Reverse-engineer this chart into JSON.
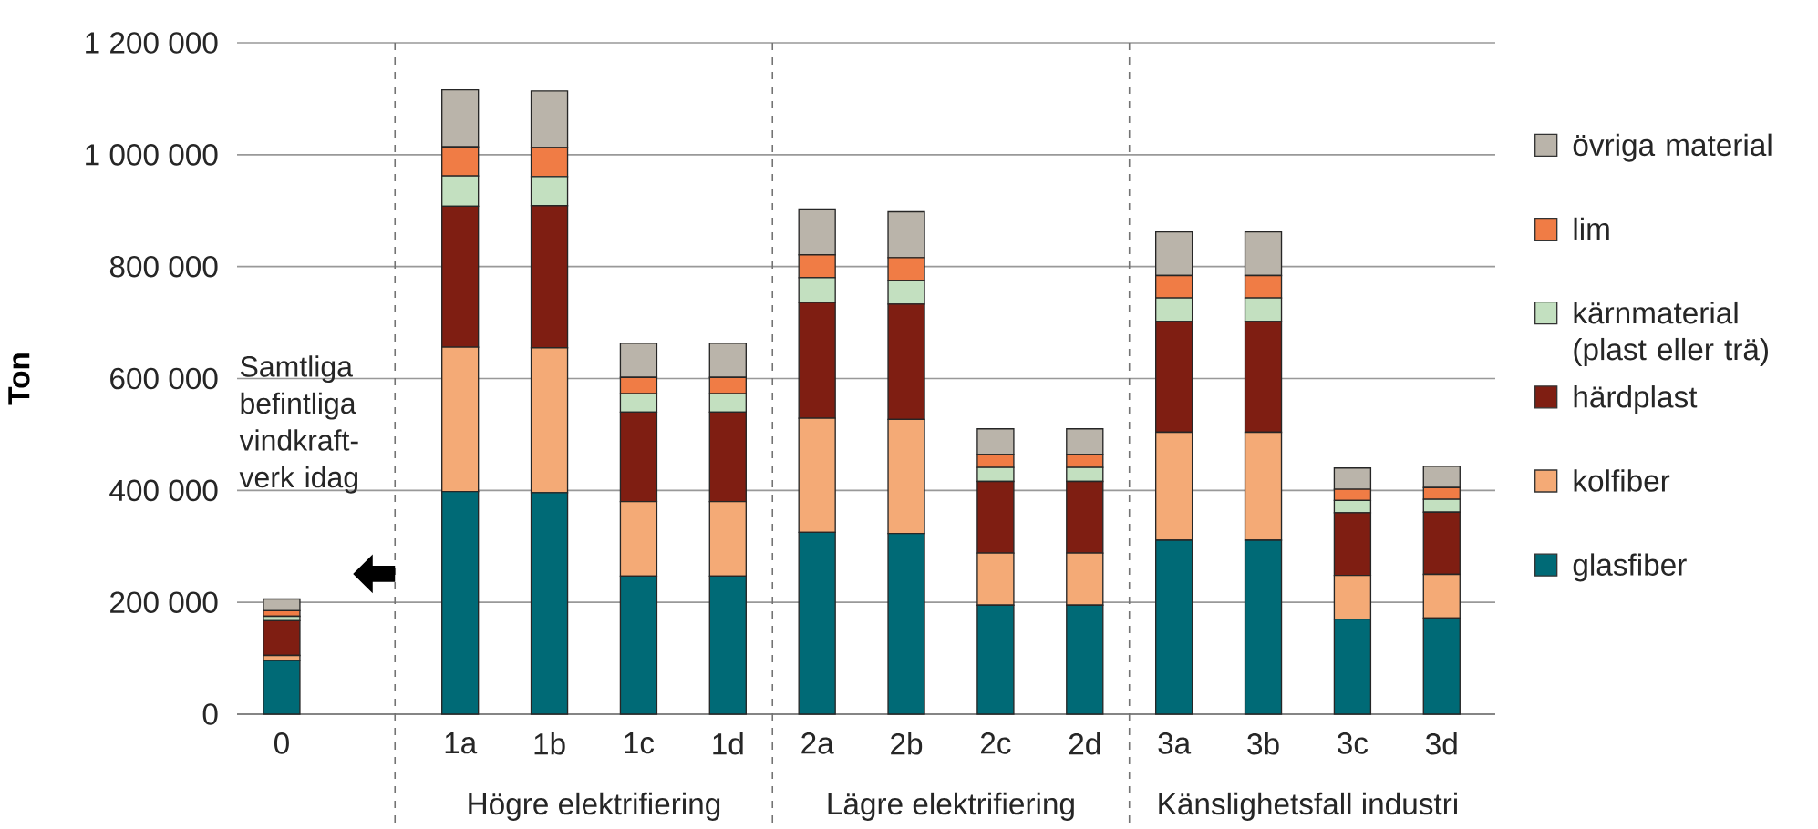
{
  "chart_data": {
    "type": "bar",
    "stacked": true,
    "ylabel": "Ton",
    "categories": [
      "0",
      null,
      "1a",
      "1b",
      "1c",
      "1d",
      "2a",
      "2b",
      "2c",
      "2d",
      "3a",
      "3b",
      "3c",
      "3d"
    ],
    "series": [
      {
        "name": "glasfiber",
        "color": "#006a76",
        "values": [
          96000,
          null,
          398000,
          396000,
          247000,
          247000,
          325000,
          323000,
          195000,
          195000,
          311000,
          311000,
          170000,
          172000
        ]
      },
      {
        "name": "kolfiber",
        "color": "#f4aa76",
        "values": [
          9000,
          null,
          258000,
          259000,
          133000,
          133000,
          204000,
          204000,
          93000,
          93000,
          193000,
          193000,
          78000,
          78000
        ]
      },
      {
        "name": "härdplast",
        "color": "#7f1e12",
        "values": [
          62000,
          null,
          252000,
          254000,
          160000,
          160000,
          207000,
          206000,
          128000,
          128000,
          198000,
          198000,
          112000,
          111000
        ]
      },
      {
        "name": "kärnmaterial (plast eller trä)",
        "color": "#c3e0c0",
        "values": [
          8000,
          null,
          54000,
          52000,
          33000,
          33000,
          44000,
          42000,
          25000,
          25000,
          42000,
          42000,
          22000,
          23000
        ]
      },
      {
        "name": "lim",
        "color": "#f07c45",
        "values": [
          10000,
          null,
          52000,
          52000,
          29000,
          29000,
          41000,
          41000,
          23000,
          23000,
          40000,
          40000,
          20000,
          21000
        ]
      },
      {
        "name": "övriga material",
        "color": "#bab4aa",
        "values": [
          21000,
          null,
          102000,
          101000,
          61000,
          61000,
          82000,
          82000,
          46000,
          46000,
          78000,
          78000,
          38000,
          38000
        ]
      }
    ],
    "ylim": [
      0,
      1200000
    ],
    "yticks": [
      0,
      {
        "value": 200000,
        "label": "200 000"
      },
      {
        "value": 400000,
        "label": "400 000"
      },
      {
        "value": 600000,
        "label": "600 000"
      },
      {
        "value": 800000,
        "label": "800 000"
      },
      {
        "value": 1000000,
        "label": "1 000 000"
      },
      {
        "value": 1200000,
        "label": "1 200 000"
      }
    ],
    "grid": "y",
    "legend": "right",
    "annotations": [
      "Samtliga befintliga vindkraft-verk idag",
      "Högre elektrifiering",
      "Lägre elektrifiering",
      "Känslighetsfall industri"
    ]
  }
}
